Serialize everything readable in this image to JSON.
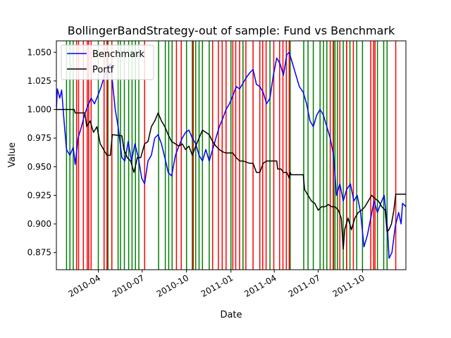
{
  "chart_data": {
    "type": "line",
    "title": "BollingerBandStrategy-out of sample: Fund vs Benchmark",
    "xlabel": "Date",
    "ylabel": "Value",
    "xlim": [
      "2010-01-04",
      "2011-12-30"
    ],
    "ylim": [
      0.86,
      1.06
    ],
    "legend_position": "top-left",
    "grid": false,
    "x_ticks": [
      {
        "date": "2010-04-01",
        "label": "2010-04"
      },
      {
        "date": "2010-07-01",
        "label": "2010-07"
      },
      {
        "date": "2010-10-01",
        "label": "2010-10"
      },
      {
        "date": "2011-01-01",
        "label": "2011-01"
      },
      {
        "date": "2011-04-01",
        "label": "2011-04"
      },
      {
        "date": "2011-07-01",
        "label": "2011-07"
      },
      {
        "date": "2011-10-01",
        "label": "2011-10"
      }
    ],
    "y_ticks": [
      {
        "value": 0.875,
        "label": "0.875"
      },
      {
        "value": 0.9,
        "label": "0.900"
      },
      {
        "value": 0.925,
        "label": "0.925"
      },
      {
        "value": 0.95,
        "label": "0.950"
      },
      {
        "value": 0.975,
        "label": "0.975"
      },
      {
        "value": 1.0,
        "label": "1.000"
      },
      {
        "value": 1.025,
        "label": "1.025"
      },
      {
        "value": 1.05,
        "label": "1.050"
      }
    ],
    "series": [
      {
        "name": "Benchmark",
        "color": "#0000ff",
        "points": [
          [
            "2010-01-04",
            1.0
          ],
          [
            "2010-01-06",
            1.018
          ],
          [
            "2010-01-11",
            1.01
          ],
          [
            "2010-01-15",
            1.017
          ],
          [
            "2010-01-20",
            0.99
          ],
          [
            "2010-01-25",
            0.965
          ],
          [
            "2010-02-01",
            0.96
          ],
          [
            "2010-02-08",
            0.967
          ],
          [
            "2010-02-12",
            0.952
          ],
          [
            "2010-02-18",
            0.975
          ],
          [
            "2010-02-25",
            0.985
          ],
          [
            "2010-03-03",
            0.995
          ],
          [
            "2010-03-10",
            1.003
          ],
          [
            "2010-03-17",
            1.01
          ],
          [
            "2010-03-24",
            1.005
          ],
          [
            "2010-03-31",
            1.012
          ],
          [
            "2010-04-07",
            1.02
          ],
          [
            "2010-04-14",
            1.03
          ],
          [
            "2010-04-21",
            1.035
          ],
          [
            "2010-04-26",
            1.04
          ],
          [
            "2010-04-30",
            1.025
          ],
          [
            "2010-05-06",
            1.0
          ],
          [
            "2010-05-12",
            0.985
          ],
          [
            "2010-05-20",
            0.958
          ],
          [
            "2010-05-26",
            0.955
          ],
          [
            "2010-06-02",
            0.972
          ],
          [
            "2010-06-09",
            0.955
          ],
          [
            "2010-06-16",
            0.97
          ],
          [
            "2010-06-23",
            0.958
          ],
          [
            "2010-06-30",
            0.94
          ],
          [
            "2010-07-06",
            0.935
          ],
          [
            "2010-07-13",
            0.955
          ],
          [
            "2010-07-20",
            0.96
          ],
          [
            "2010-07-27",
            0.975
          ],
          [
            "2010-08-03",
            0.978
          ],
          [
            "2010-08-10",
            0.97
          ],
          [
            "2010-08-17",
            0.958
          ],
          [
            "2010-08-24",
            0.945
          ],
          [
            "2010-08-31",
            0.942
          ],
          [
            "2010-09-08",
            0.96
          ],
          [
            "2010-09-15",
            0.968
          ],
          [
            "2010-09-22",
            0.975
          ],
          [
            "2010-09-29",
            0.98
          ],
          [
            "2010-10-06",
            0.982
          ],
          [
            "2010-10-13",
            0.975
          ],
          [
            "2010-10-20",
            0.97
          ],
          [
            "2010-10-27",
            0.96
          ],
          [
            "2010-11-03",
            0.955
          ],
          [
            "2010-11-10",
            0.965
          ],
          [
            "2010-11-17",
            0.955
          ],
          [
            "2010-11-24",
            0.965
          ],
          [
            "2010-12-01",
            0.975
          ],
          [
            "2010-12-08",
            0.985
          ],
          [
            "2010-12-15",
            0.992
          ],
          [
            "2010-12-22",
            1.0
          ],
          [
            "2010-12-29",
            1.005
          ],
          [
            "2011-01-05",
            1.012
          ],
          [
            "2011-01-12",
            1.02
          ],
          [
            "2011-01-19",
            1.018
          ],
          [
            "2011-01-26",
            1.023
          ],
          [
            "2011-02-02",
            1.028
          ],
          [
            "2011-02-09",
            1.032
          ],
          [
            "2011-02-16",
            1.035
          ],
          [
            "2011-02-23",
            1.022
          ],
          [
            "2011-03-02",
            1.02
          ],
          [
            "2011-03-09",
            1.015
          ],
          [
            "2011-03-16",
            1.005
          ],
          [
            "2011-03-23",
            1.01
          ],
          [
            "2011-03-30",
            1.03
          ],
          [
            "2011-04-06",
            1.045
          ],
          [
            "2011-04-13",
            1.04
          ],
          [
            "2011-04-20",
            1.03
          ],
          [
            "2011-04-27",
            1.048
          ],
          [
            "2011-05-02",
            1.05
          ],
          [
            "2011-05-09",
            1.04
          ],
          [
            "2011-05-16",
            1.03
          ],
          [
            "2011-05-23",
            1.02
          ],
          [
            "2011-05-31",
            1.015
          ],
          [
            "2011-06-07",
            1.005
          ],
          [
            "2011-06-14",
            0.99
          ],
          [
            "2011-06-21",
            0.985
          ],
          [
            "2011-06-28",
            0.995
          ],
          [
            "2011-07-05",
            1.0
          ],
          [
            "2011-07-12",
            0.995
          ],
          [
            "2011-07-19",
            0.985
          ],
          [
            "2011-07-26",
            0.975
          ],
          [
            "2011-08-02",
            0.96
          ],
          [
            "2011-08-08",
            0.925
          ],
          [
            "2011-08-15",
            0.935
          ],
          [
            "2011-08-22",
            0.92
          ],
          [
            "2011-08-29",
            0.93
          ],
          [
            "2011-09-06",
            0.935
          ],
          [
            "2011-09-13",
            0.92
          ],
          [
            "2011-09-20",
            0.925
          ],
          [
            "2011-09-27",
            0.91
          ],
          [
            "2011-10-04",
            0.88
          ],
          [
            "2011-10-11",
            0.89
          ],
          [
            "2011-10-18",
            0.905
          ],
          [
            "2011-10-25",
            0.92
          ],
          [
            "2011-11-01",
            0.91
          ],
          [
            "2011-11-08",
            0.918
          ],
          [
            "2011-11-15",
            0.925
          ],
          [
            "2011-11-22",
            0.895
          ],
          [
            "2011-11-25",
            0.87
          ],
          [
            "2011-12-01",
            0.875
          ],
          [
            "2011-12-08",
            0.898
          ],
          [
            "2011-12-15",
            0.91
          ],
          [
            "2011-12-20",
            0.9
          ],
          [
            "2011-12-23",
            0.918
          ],
          [
            "2011-12-30",
            0.915
          ]
        ]
      },
      {
        "name": "Portf",
        "color": "#000000",
        "points": [
          [
            "2010-01-04",
            1.0
          ],
          [
            "2010-02-10",
            1.0
          ],
          [
            "2010-02-12",
            0.997
          ],
          [
            "2010-03-04",
            0.997
          ],
          [
            "2010-03-08",
            0.985
          ],
          [
            "2010-03-15",
            0.99
          ],
          [
            "2010-03-22",
            0.98
          ],
          [
            "2010-03-29",
            0.985
          ],
          [
            "2010-04-05",
            0.97
          ],
          [
            "2010-04-12",
            0.965
          ],
          [
            "2010-04-19",
            0.96
          ],
          [
            "2010-04-26",
            0.96
          ],
          [
            "2010-04-30",
            0.978
          ],
          [
            "2010-05-20",
            0.977
          ],
          [
            "2010-05-24",
            0.965
          ],
          [
            "2010-05-31",
            0.958
          ],
          [
            "2010-06-07",
            0.955
          ],
          [
            "2010-06-14",
            0.945
          ],
          [
            "2010-06-21",
            0.958
          ],
          [
            "2010-06-28",
            0.958
          ],
          [
            "2010-07-06",
            0.97
          ],
          [
            "2010-07-13",
            0.972
          ],
          [
            "2010-07-20",
            0.985
          ],
          [
            "2010-07-27",
            0.99
          ],
          [
            "2010-08-03",
            0.997
          ],
          [
            "2010-08-10",
            0.99
          ],
          [
            "2010-08-17",
            0.985
          ],
          [
            "2010-08-24",
            0.978
          ],
          [
            "2010-08-31",
            0.972
          ],
          [
            "2010-09-08",
            0.97
          ],
          [
            "2010-09-15",
            0.968
          ],
          [
            "2010-09-22",
            0.97
          ],
          [
            "2010-09-29",
            0.965
          ],
          [
            "2010-10-06",
            0.968
          ],
          [
            "2010-10-13",
            0.96
          ],
          [
            "2010-10-20",
            0.968
          ],
          [
            "2010-10-27",
            0.975
          ],
          [
            "2010-11-03",
            0.982
          ],
          [
            "2010-11-10",
            0.98
          ],
          [
            "2010-11-17",
            0.978
          ],
          [
            "2010-11-24",
            0.972
          ],
          [
            "2010-12-01",
            0.968
          ],
          [
            "2010-12-08",
            0.965
          ],
          [
            "2010-12-15",
            0.963
          ],
          [
            "2010-12-22",
            0.962
          ],
          [
            "2011-01-05",
            0.962
          ],
          [
            "2011-01-12",
            0.958
          ],
          [
            "2011-01-19",
            0.955
          ],
          [
            "2011-01-26",
            0.955
          ],
          [
            "2011-02-09",
            0.953
          ],
          [
            "2011-02-16",
            0.953
          ],
          [
            "2011-02-23",
            0.945
          ],
          [
            "2011-03-02",
            0.945
          ],
          [
            "2011-03-09",
            0.953
          ],
          [
            "2011-03-16",
            0.955
          ],
          [
            "2011-04-06",
            0.955
          ],
          [
            "2011-04-08",
            0.948
          ],
          [
            "2011-04-15",
            0.948
          ],
          [
            "2011-04-20",
            0.945
          ],
          [
            "2011-04-27",
            0.945
          ],
          [
            "2011-05-02",
            0.94
          ],
          [
            "2011-05-04",
            0.945
          ],
          [
            "2011-05-06",
            0.943
          ],
          [
            "2011-05-31",
            0.943
          ],
          [
            "2011-06-03",
            0.93
          ],
          [
            "2011-06-10",
            0.925
          ],
          [
            "2011-06-17",
            0.92
          ],
          [
            "2011-06-24",
            0.918
          ],
          [
            "2011-07-01",
            0.912
          ],
          [
            "2011-07-08",
            0.915
          ],
          [
            "2011-07-15",
            0.915
          ],
          [
            "2011-07-22",
            0.917
          ],
          [
            "2011-07-29",
            0.915
          ],
          [
            "2011-08-05",
            0.915
          ],
          [
            "2011-08-12",
            0.912
          ],
          [
            "2011-08-18",
            0.905
          ],
          [
            "2011-08-22",
            0.878
          ],
          [
            "2011-08-25",
            0.895
          ],
          [
            "2011-09-01",
            0.905
          ],
          [
            "2011-09-08",
            0.895
          ],
          [
            "2011-09-15",
            0.905
          ],
          [
            "2011-09-22",
            0.91
          ],
          [
            "2011-09-29",
            0.912
          ],
          [
            "2011-10-06",
            0.915
          ],
          [
            "2011-10-13",
            0.92
          ],
          [
            "2011-10-20",
            0.925
          ],
          [
            "2011-10-27",
            0.922
          ],
          [
            "2011-11-03",
            0.92
          ],
          [
            "2011-11-10",
            0.915
          ],
          [
            "2011-11-17",
            0.912
          ],
          [
            "2011-11-21",
            0.893
          ],
          [
            "2011-11-25",
            0.895
          ],
          [
            "2011-11-30",
            0.9
          ],
          [
            "2011-12-05",
            0.912
          ],
          [
            "2011-12-09",
            0.926
          ],
          [
            "2011-12-30",
            0.926
          ]
        ]
      }
    ],
    "vertical_markers": [
      {
        "color": "#008000",
        "dates": [
          "2010-01-25",
          "2010-02-01",
          "2010-02-08",
          "2010-04-01",
          "2010-04-13",
          "2010-04-21",
          "2010-04-29",
          "2010-05-12",
          "2010-05-17",
          "2010-05-25",
          "2010-06-03",
          "2010-06-10",
          "2010-06-17",
          "2010-06-24",
          "2010-08-04",
          "2010-08-18",
          "2010-08-25",
          "2010-09-01",
          "2010-10-01",
          "2010-10-13",
          "2010-10-20",
          "2010-10-27",
          "2010-11-03",
          "2010-11-17",
          "2011-01-01",
          "2011-01-26",
          "2011-03-23",
          "2011-05-04",
          "2011-06-01",
          "2011-06-10",
          "2011-06-21",
          "2011-07-05",
          "2011-07-12",
          "2011-07-19",
          "2011-08-01",
          "2011-08-05",
          "2011-08-10",
          "2011-08-22",
          "2011-08-29",
          "2011-09-05",
          "2011-09-19",
          "2011-10-01",
          "2011-11-01",
          "2011-11-14",
          "2011-11-21"
        ]
      },
      {
        "color": "#ff0000",
        "dates": [
          "2010-02-15",
          "2010-02-19",
          "2010-03-01",
          "2010-03-09",
          "2010-03-12",
          "2010-03-17",
          "2010-04-13",
          "2010-04-19",
          "2010-04-29",
          "2010-07-06",
          "2010-09-10",
          "2010-09-20",
          "2010-10-15",
          "2010-11-24",
          "2010-12-06",
          "2010-12-14",
          "2010-12-22",
          "2011-01-05",
          "2011-01-11",
          "2011-01-19",
          "2011-02-01",
          "2011-02-16",
          "2011-03-02",
          "2011-03-08",
          "2011-03-15",
          "2011-03-31",
          "2011-04-12",
          "2011-04-19",
          "2011-04-26",
          "2011-05-02",
          "2011-07-26",
          "2011-08-02",
          "2011-08-15",
          "2011-08-29",
          "2011-09-12",
          "2011-10-18",
          "2011-10-24",
          "2011-10-27",
          "2011-12-09"
        ]
      }
    ]
  }
}
